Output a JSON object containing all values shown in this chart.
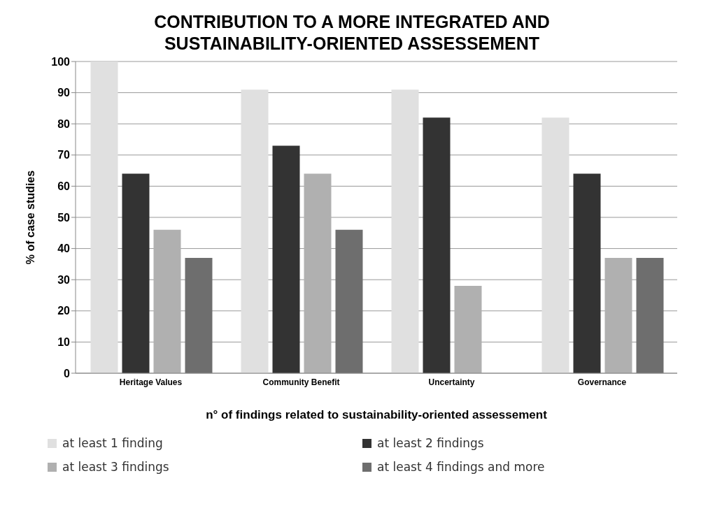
{
  "chart_data": {
    "type": "bar",
    "title": "CONTRIBUTION TO A MORE INTEGRATED AND SUSTAINABILITY-ORIENTED ASSESSEMENT",
    "xlabel": "n° of findings related to sustainability-oriented assessement",
    "ylabel": "% of case studies",
    "categories": [
      "Heritage Values",
      "Community Benefit",
      "Uncertainty",
      "Governance"
    ],
    "series": [
      {
        "name": "at least 1 finding",
        "color": "#e0e0e0",
        "values": [
          100,
          91,
          91,
          82
        ]
      },
      {
        "name": "at least 2 findings",
        "color": "#333333",
        "values": [
          64,
          73,
          82,
          64
        ]
      },
      {
        "name": "at least 3 findings",
        "color": "#b0b0b0",
        "values": [
          46,
          64,
          28,
          37
        ]
      },
      {
        "name": "at least 4 findings and more",
        "color": "#6e6e6e",
        "values": [
          37,
          46,
          0,
          37
        ]
      }
    ],
    "ylim": [
      0,
      100
    ],
    "yticks": [
      0,
      10,
      20,
      30,
      40,
      50,
      60,
      70,
      80,
      90,
      100
    ],
    "grid": "y",
    "legend": "bottom"
  }
}
